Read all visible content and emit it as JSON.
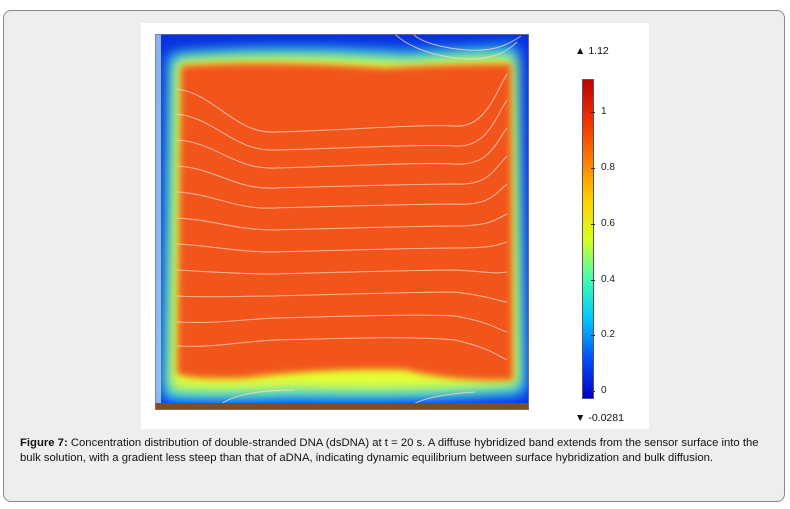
{
  "figure": {
    "label": "Figure 7:",
    "caption": " Concentration distribution of double-stranded DNA (dsDNA) at t = 20 s. A diffuse hybridized band extends from the sensor surface into the bulk solution, with a gradient less steep than that of aDNA, indicating dynamic equilibrium between surface hybridization and bulk diffusion."
  },
  "colorbar": {
    "max_label": "1.12",
    "min_label": "-0.0281",
    "max_marker": "▲",
    "min_marker": "▼",
    "ticks": [
      "0",
      "0.2",
      "0.4",
      "0.6",
      "0.8",
      "1"
    ],
    "tick_values": [
      0,
      0.2,
      0.4,
      0.6,
      0.8,
      1
    ],
    "range": [
      -0.0281,
      1.12
    ],
    "colormap": "rainbow",
    "colors": [
      "#0000c8",
      "#0050ff",
      "#00c8ff",
      "#40ffb0",
      "#d8ff20",
      "#ffd000",
      "#ff7a00",
      "#f03000",
      "#c00000"
    ]
  },
  "plot_colors": {
    "bulk": "#f2541f",
    "blue": "#0a2fe0",
    "edge": "#7a4a2a",
    "contour": "#ffd9c8"
  }
}
